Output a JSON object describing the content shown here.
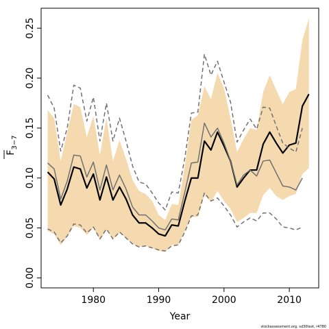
{
  "chart_data": {
    "type": "line",
    "xlabel": "Year",
    "ylabel": "F",
    "ylabel_sub": "3−7",
    "footnote": "stockassessment.org, sd30test, r4780",
    "xlim": [
      1972,
      2014.5
    ],
    "ylim": [
      -0.01,
      0.27
    ],
    "xticks": [
      1980,
      1990,
      2000,
      2010
    ],
    "yticks": [
      0.0,
      0.05,
      0.1,
      0.15,
      0.2,
      0.25
    ],
    "ytick_labels": [
      "0.00",
      "0.05",
      "0.10",
      "0.15",
      "0.20",
      "0.25"
    ],
    "colors": {
      "band": "#f5dab0",
      "main": "#000000",
      "grey": "#707070"
    },
    "band": {
      "x": [
        1973,
        1974,
        1975,
        1976,
        1977,
        1978,
        1979,
        1980,
        1981,
        1982,
        1983,
        1984,
        1985,
        1986,
        1987,
        1988,
        1989,
        1990,
        1991,
        1992,
        1993,
        1994,
        1995,
        1996,
        1997,
        1998,
        1999,
        2000,
        2001,
        2002,
        2003,
        2004,
        2005,
        2006,
        2007,
        2008,
        2009,
        2010,
        2011,
        2012,
        2013
      ],
      "lower": [
        0.047,
        0.044,
        0.033,
        0.041,
        0.052,
        0.05,
        0.043,
        0.05,
        0.038,
        0.048,
        0.039,
        0.045,
        0.04,
        0.034,
        0.031,
        0.032,
        0.03,
        0.027,
        0.026,
        0.033,
        0.033,
        0.047,
        0.061,
        0.061,
        0.083,
        0.076,
        0.087,
        0.077,
        0.069,
        0.056,
        0.06,
        0.065,
        0.065,
        0.083,
        0.09,
        0.082,
        0.078,
        0.082,
        0.084,
        0.104,
        0.11
      ],
      "upper": [
        0.168,
        0.16,
        0.117,
        0.146,
        0.174,
        0.171,
        0.141,
        0.162,
        0.123,
        0.16,
        0.117,
        0.138,
        0.119,
        0.098,
        0.087,
        0.084,
        0.077,
        0.063,
        0.058,
        0.074,
        0.073,
        0.112,
        0.158,
        0.163,
        0.192,
        0.179,
        0.205,
        0.19,
        0.16,
        0.126,
        0.139,
        0.15,
        0.148,
        0.186,
        0.203,
        0.188,
        0.174,
        0.186,
        0.189,
        0.238,
        0.26
      ]
    },
    "series": [
      {
        "name": "",
        "style": "main",
        "x": [
          1973,
          1974,
          1975,
          1976,
          1977,
          1978,
          1979,
          1980,
          1981,
          1982,
          1983,
          1984,
          1985,
          1986,
          1987,
          1988,
          1989,
          1990,
          1991,
          1992,
          1993,
          1994,
          1995,
          1996,
          1997,
          1998,
          1999,
          2000,
          2001,
          2002,
          2003,
          2004,
          2005,
          2006,
          2007,
          2008,
          2009,
          2010,
          2011,
          2012,
          2013
        ],
        "values": [
          0.106,
          0.099,
          0.073,
          0.089,
          0.111,
          0.109,
          0.09,
          0.104,
          0.078,
          0.101,
          0.078,
          0.091,
          0.079,
          0.063,
          0.055,
          0.055,
          0.05,
          0.044,
          0.042,
          0.053,
          0.052,
          0.077,
          0.1,
          0.1,
          0.137,
          0.128,
          0.146,
          0.132,
          0.117,
          0.091,
          0.1,
          0.108,
          0.108,
          0.134,
          0.146,
          0.135,
          0.125,
          0.133,
          0.135,
          0.172,
          0.184
        ]
      },
      {
        "name": "",
        "style": "grey",
        "x": [
          1973,
          1974,
          1975,
          1976,
          1977,
          1978,
          1979,
          1980,
          1981,
          1982,
          1983,
          1984,
          1985,
          1986,
          1987,
          1988,
          1989,
          1990,
          1991,
          1992,
          1993,
          1994,
          1995,
          1996,
          1997,
          1998,
          1999,
          2000,
          2001,
          2002,
          2003,
          2004,
          2005,
          2006,
          2007,
          2008,
          2009,
          2010,
          2011,
          2012
        ],
        "values": [
          0.115,
          0.109,
          0.079,
          0.097,
          0.123,
          0.122,
          0.101,
          0.116,
          0.088,
          0.113,
          0.088,
          0.103,
          0.089,
          0.071,
          0.063,
          0.063,
          0.057,
          0.05,
          0.048,
          0.059,
          0.058,
          0.086,
          0.115,
          0.116,
          0.155,
          0.141,
          0.15,
          0.135,
          0.117,
          0.093,
          0.103,
          0.108,
          0.102,
          0.117,
          0.118,
          0.105,
          0.092,
          0.091,
          0.088,
          0.1
        ]
      },
      {
        "name": "",
        "style": "dashed",
        "x": [
          1973,
          1974,
          1975,
          1976,
          1977,
          1978,
          1979,
          1980,
          1981,
          1982,
          1983,
          1984,
          1985,
          1986,
          1987,
          1988,
          1989,
          1990,
          1991,
          1992,
          1993,
          1994,
          1995,
          1996,
          1997,
          1998,
          1999,
          2000,
          2001,
          2002,
          2003,
          2004,
          2005,
          2006,
          2007,
          2008,
          2009,
          2010,
          2011,
          2012
        ],
        "values": [
          0.183,
          0.17,
          0.127,
          0.15,
          0.193,
          0.19,
          0.157,
          0.181,
          0.137,
          0.175,
          0.137,
          0.16,
          0.137,
          0.112,
          0.096,
          0.094,
          0.085,
          0.075,
          0.068,
          0.086,
          0.085,
          0.12,
          0.165,
          0.166,
          0.224,
          0.203,
          0.217,
          0.196,
          0.176,
          0.136,
          0.148,
          0.159,
          0.149,
          0.171,
          0.17,
          0.152,
          0.135,
          0.13,
          0.126,
          0.15
        ]
      },
      {
        "name": "",
        "style": "dashed",
        "x": [
          1973,
          1974,
          1975,
          1976,
          1977,
          1978,
          1979,
          1980,
          1981,
          1982,
          1983,
          1984,
          1985,
          1986,
          1987,
          1988,
          1989,
          1990,
          1991,
          1992,
          1993,
          1994,
          1995,
          1996,
          1997,
          1998,
          1999,
          2000,
          2001,
          2002,
          2003,
          2004,
          2005,
          2006,
          2007,
          2008,
          2009,
          2010,
          2011,
          2012
        ],
        "values": [
          0.049,
          0.046,
          0.035,
          0.042,
          0.054,
          0.053,
          0.045,
          0.051,
          0.039,
          0.049,
          0.039,
          0.046,
          0.04,
          0.034,
          0.031,
          0.032,
          0.03,
          0.028,
          0.027,
          0.032,
          0.033,
          0.046,
          0.062,
          0.063,
          0.085,
          0.077,
          0.08,
          0.072,
          0.063,
          0.051,
          0.056,
          0.06,
          0.057,
          0.065,
          0.065,
          0.059,
          0.051,
          0.05,
          0.048,
          0.051
        ]
      }
    ],
    "grid": false,
    "legend": "none"
  }
}
